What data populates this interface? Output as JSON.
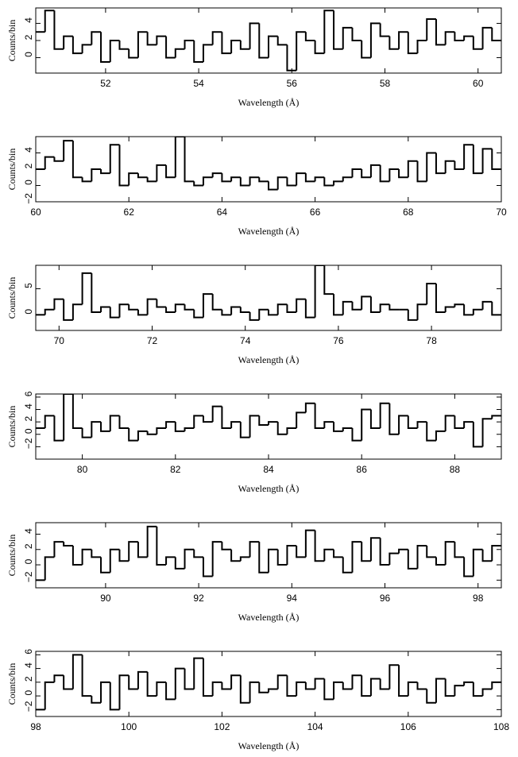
{
  "chart_data": [
    {
      "type": "histogram",
      "xlabel": "Wavelength (Å)",
      "ylabel": "Counts/bin",
      "color": "#000000",
      "bins": [
        50.5,
        50.7,
        50.9,
        51.1,
        51.3,
        51.5,
        51.7,
        51.9,
        52.1,
        52.3,
        52.5,
        52.7,
        52.9,
        53.1,
        53.3,
        53.5,
        53.7,
        53.9,
        54.1,
        54.3,
        54.5,
        54.7,
        54.9,
        55.1,
        55.3,
        55.5,
        55.7,
        55.9,
        56.1,
        56.3,
        56.5,
        56.7,
        56.9,
        57.1,
        57.3,
        57.5,
        57.7,
        57.9,
        58.1,
        58.3,
        58.5,
        58.7,
        58.9,
        59.1,
        59.3,
        59.5,
        59.7,
        59.9,
        60.1,
        60.3,
        60.5
      ],
      "values": [
        3,
        5.5,
        1,
        2.5,
        0.5,
        1.5,
        3,
        -0.5,
        2,
        1,
        0,
        3,
        1.5,
        2.5,
        0,
        1,
        2,
        -0.5,
        1.5,
        3,
        0.5,
        2,
        1,
        4,
        0,
        2.5,
        1.5,
        -1.5,
        3,
        2,
        0.5,
        5.5,
        1,
        3.5,
        2,
        0,
        4,
        2.5,
        1,
        3,
        0.5,
        2,
        4.5,
        1.5,
        3,
        2,
        2.5,
        1,
        3.5,
        2
      ],
      "xlim": [
        50.5,
        60.5
      ],
      "ylim": [
        -1.8,
        5.8
      ],
      "xticks": [
        52,
        54,
        56,
        58,
        60
      ],
      "yticks": [
        0,
        2,
        4
      ]
    },
    {
      "type": "histogram",
      "xlabel": "Wavelength (Å)",
      "ylabel": "Counts/bin",
      "color": "#000000",
      "bins": [
        60,
        60.2,
        60.4,
        60.6,
        60.8,
        61,
        61.2,
        61.4,
        61.6,
        61.8,
        62,
        62.2,
        62.4,
        62.6,
        62.8,
        63,
        63.2,
        63.4,
        63.6,
        63.8,
        64,
        64.2,
        64.4,
        64.6,
        64.8,
        65,
        65.2,
        65.4,
        65.6,
        65.8,
        66,
        66.2,
        66.4,
        66.6,
        66.8,
        67,
        67.2,
        67.4,
        67.6,
        67.8,
        68,
        68.2,
        68.4,
        68.6,
        68.8,
        69,
        69.2,
        69.4,
        69.6,
        69.8,
        70
      ],
      "values": [
        2,
        3.5,
        3,
        5.5,
        1,
        0.5,
        2,
        1.5,
        5,
        0,
        1.5,
        1,
        0.5,
        2.5,
        1,
        6,
        0.5,
        0,
        1,
        1.5,
        0.5,
        1,
        0,
        1,
        0.5,
        -0.5,
        1,
        0,
        1.5,
        0.5,
        1,
        0,
        0.5,
        1,
        2,
        1,
        2.5,
        0.5,
        2,
        1,
        3,
        0.5,
        4,
        1.5,
        3,
        2,
        5,
        1.5,
        4.5,
        2
      ],
      "xlim": [
        60,
        70
      ],
      "ylim": [
        -2,
        6
      ],
      "xticks": [
        60,
        62,
        64,
        66,
        68,
        70
      ],
      "yticks": [
        {
          "value": -2,
          "label": "−2"
        },
        0,
        2,
        4
      ]
    },
    {
      "type": "histogram",
      "xlabel": "Wavelength (Å)",
      "ylabel": "Counts/bin",
      "color": "#000000",
      "bins": [
        69.5,
        69.7,
        69.9,
        70.1,
        70.3,
        70.5,
        70.7,
        70.9,
        71.1,
        71.3,
        71.5,
        71.7,
        71.9,
        72.1,
        72.3,
        72.5,
        72.7,
        72.9,
        73.1,
        73.3,
        73.5,
        73.7,
        73.9,
        74.1,
        74.3,
        74.5,
        74.7,
        74.9,
        75.1,
        75.3,
        75.5,
        75.7,
        75.9,
        76.1,
        76.3,
        76.5,
        76.7,
        76.9,
        77.1,
        77.3,
        77.5,
        77.7,
        77.9,
        78.1,
        78.3,
        78.5,
        78.7,
        78.9,
        79.1,
        79.3,
        79.5
      ],
      "values": [
        0,
        1,
        3,
        -1,
        2,
        8,
        0.5,
        1.5,
        -0.5,
        2,
        1,
        0,
        3,
        1.5,
        0.5,
        2,
        1,
        -0.5,
        4,
        1,
        0,
        1.5,
        0.5,
        -1,
        1,
        0,
        2,
        0.5,
        3,
        -0.5,
        9.5,
        4,
        0,
        2.5,
        1,
        3.5,
        0.5,
        2,
        1,
        1,
        -1,
        2,
        6,
        0.5,
        1.5,
        2,
        0,
        1,
        2.5,
        0
      ],
      "xlim": [
        69.5,
        79.5
      ],
      "ylim": [
        -3,
        9.5
      ],
      "xticks": [
        70,
        72,
        74,
        76,
        78
      ],
      "yticks": [
        0,
        5
      ]
    },
    {
      "type": "histogram",
      "xlabel": "Wavelength (Å)",
      "ylabel": "Counts/bin",
      "color": "#000000",
      "bins": [
        79,
        79.2,
        79.4,
        79.6,
        79.8,
        80,
        80.2,
        80.4,
        80.6,
        80.8,
        81,
        81.2,
        81.4,
        81.6,
        81.8,
        82,
        82.2,
        82.4,
        82.6,
        82.8,
        83,
        83.2,
        83.4,
        83.6,
        83.8,
        84,
        84.2,
        84.4,
        84.6,
        84.8,
        85,
        85.2,
        85.4,
        85.6,
        85.8,
        86,
        86.2,
        86.4,
        86.6,
        86.8,
        87,
        87.2,
        87.4,
        87.6,
        87.8,
        88,
        88.2,
        88.4,
        88.6,
        88.8,
        89
      ],
      "values": [
        1,
        3,
        -1,
        6.5,
        1,
        -0.5,
        2,
        0.5,
        3,
        1,
        -1,
        0.5,
        0,
        1,
        2,
        0.5,
        1,
        3,
        2,
        4.5,
        1,
        2,
        -0.5,
        3,
        1.5,
        2,
        0,
        1,
        3.5,
        5,
        1,
        2,
        0.5,
        1,
        -1,
        4,
        1,
        5,
        0,
        3,
        1,
        2,
        -1,
        0.5,
        3,
        1,
        2,
        -2,
        2.5,
        3
      ],
      "xlim": [
        79,
        89
      ],
      "ylim": [
        -4,
        6.5
      ],
      "xticks": [
        80,
        82,
        84,
        86,
        88
      ],
      "yticks": [
        {
          "value": -2,
          "label": "−2"
        },
        0,
        2,
        4,
        6
      ]
    },
    {
      "type": "histogram",
      "xlabel": "Wavelength (Å)",
      "ylabel": "Counts/bin",
      "color": "#000000",
      "bins": [
        88.5,
        88.7,
        88.9,
        89.1,
        89.3,
        89.5,
        89.7,
        89.9,
        90.1,
        90.3,
        90.5,
        90.7,
        90.9,
        91.1,
        91.3,
        91.5,
        91.7,
        91.9,
        92.1,
        92.3,
        92.5,
        92.7,
        92.9,
        93.1,
        93.3,
        93.5,
        93.7,
        93.9,
        94.1,
        94.3,
        94.5,
        94.7,
        94.9,
        95.1,
        95.3,
        95.5,
        95.7,
        95.9,
        96.1,
        96.3,
        96.5,
        96.7,
        96.9,
        97.1,
        97.3,
        97.5,
        97.7,
        97.9,
        98.1,
        98.3,
        98.5
      ],
      "values": [
        -2,
        1,
        3,
        2.5,
        0,
        2,
        1,
        -1,
        2,
        0.5,
        3,
        1,
        5,
        0,
        1,
        -0.5,
        2,
        1,
        -1.5,
        3,
        2,
        0.5,
        1,
        3,
        -1,
        2,
        0,
        2.5,
        1,
        4.5,
        0.5,
        2,
        1,
        -1,
        3,
        0.5,
        3.5,
        0,
        1.5,
        2,
        -0.5,
        2.5,
        1,
        0,
        3,
        1,
        -1.5,
        2,
        0.5,
        2.5
      ],
      "xlim": [
        88.5,
        98.5
      ],
      "ylim": [
        -3,
        5.5
      ],
      "xticks": [
        90,
        92,
        94,
        96,
        98
      ],
      "yticks": [
        {
          "value": -2,
          "label": "−2"
        },
        0,
        2,
        4
      ]
    },
    {
      "type": "histogram",
      "xlabel": "Wavelength (Å)",
      "ylabel": "Counts/bin",
      "color": "#000000",
      "bins": [
        98,
        98.2,
        98.4,
        98.6,
        98.8,
        99,
        99.2,
        99.4,
        99.6,
        99.8,
        100,
        100.2,
        100.4,
        100.6,
        100.8,
        101,
        101.2,
        101.4,
        101.6,
        101.8,
        102,
        102.2,
        102.4,
        102.6,
        102.8,
        103,
        103.2,
        103.4,
        103.6,
        103.8,
        104,
        104.2,
        104.4,
        104.6,
        104.8,
        105,
        105.2,
        105.4,
        105.6,
        105.8,
        106,
        106.2,
        106.4,
        106.6,
        106.8,
        107,
        107.2,
        107.4,
        107.6,
        107.8,
        108
      ],
      "values": [
        -2,
        2,
        3,
        1,
        6,
        0,
        -1,
        2,
        -2,
        3,
        1,
        3.5,
        0,
        2,
        -0.5,
        4,
        1,
        5.5,
        0,
        2,
        1,
        3,
        -1,
        2,
        0.5,
        1,
        3,
        0,
        2,
        1,
        2.5,
        -0.5,
        2,
        1,
        3,
        0,
        2.5,
        1,
        4.5,
        0,
        2,
        1,
        -1,
        2.5,
        0,
        1.5,
        2,
        0,
        1,
        2
      ],
      "xlim": [
        98,
        108
      ],
      "ylim": [
        -3,
        6.5
      ],
      "xticks": [
        98,
        100,
        102,
        104,
        106,
        108
      ],
      "yticks": [
        {
          "value": -2,
          "label": "−2"
        },
        0,
        2,
        4,
        6
      ]
    }
  ]
}
